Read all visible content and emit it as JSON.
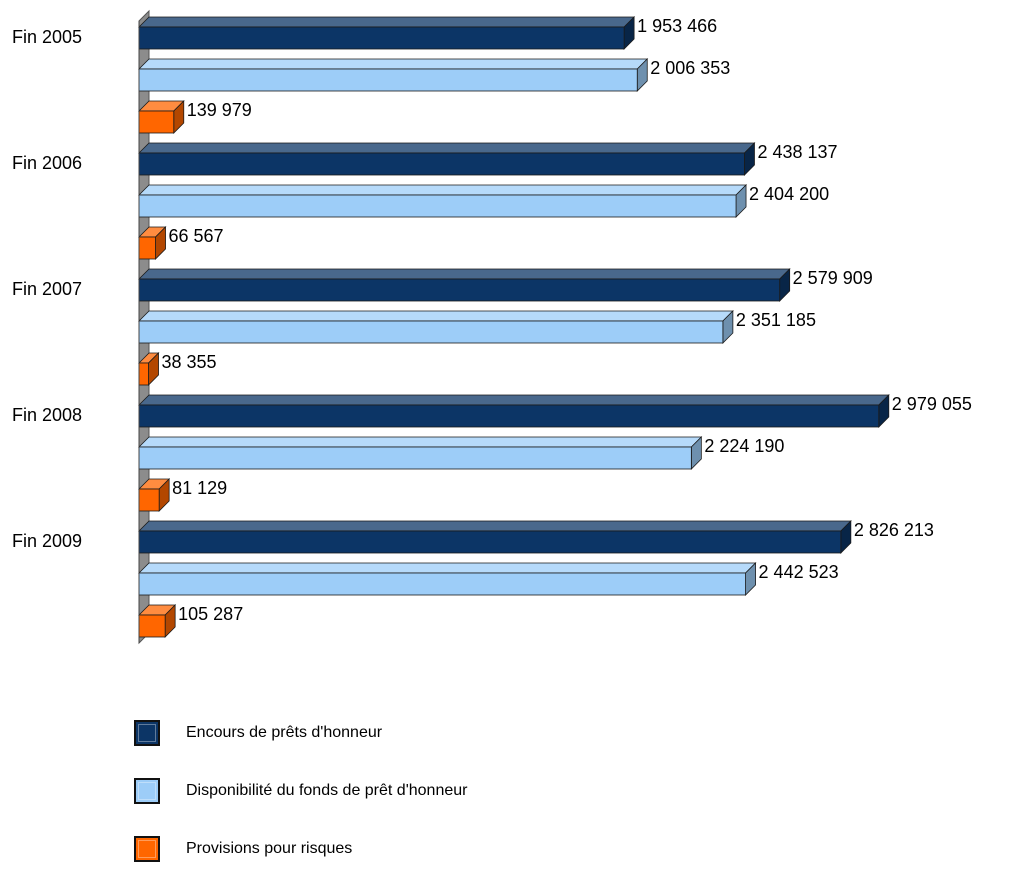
{
  "chart_data": {
    "type": "bar",
    "orientation": "horizontal",
    "three_d": true,
    "categories": [
      "Fin 2005",
      "Fin 2006",
      "Fin 2007",
      "Fin 2008",
      "Fin 2009"
    ],
    "series": [
      {
        "name": "Encours de prêts d'honneur",
        "color": "#0c3566",
        "values": [
          1953466,
          2438137,
          2579909,
          2979055,
          2826213
        ],
        "labels": [
          "1 953 466",
          "2 438 137",
          "2 579 909",
          "2 979 055",
          "2 826 213"
        ]
      },
      {
        "name": "Disponibilité du fonds de prêt d'honneur",
        "color": "#9dcdf8",
        "values": [
          2006353,
          2404200,
          2351185,
          2224190,
          2442523
        ],
        "labels": [
          "2 006 353",
          "2 404 200",
          "2 351 185",
          "2 224 190",
          "2 442 523"
        ]
      },
      {
        "name": "Provisions pour risques",
        "color": "#ff6600",
        "values": [
          139979,
          66567,
          38355,
          81129,
          105287
        ],
        "labels": [
          "139 979",
          "66 567",
          "38 355",
          "81 129",
          "105 287"
        ]
      }
    ],
    "xlim": [
      0,
      3000000
    ],
    "grid": false,
    "legend_position": "bottom-left"
  }
}
